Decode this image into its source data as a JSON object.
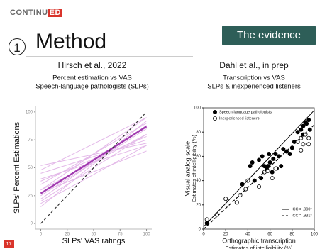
{
  "logo": {
    "text": "CONTINU",
    "highlight": "ED"
  },
  "section_number": "1",
  "title": "Method",
  "badge": "The evidence",
  "page_number": "17",
  "chart_data": [
    {
      "type": "line",
      "title": "Hirsch et al., 2022",
      "subtitle": [
        "Percent estimation vs VAS",
        "Speech-language pathologists (SLPs)"
      ],
      "xlabel": "SLPs' VAS ratings",
      "ylabel": [
        "SLPs' Percent Estimations"
      ],
      "x": [
        0,
        100
      ],
      "xlim": [
        -5,
        105
      ],
      "ylim": [
        -5,
        105
      ],
      "xticks": [
        0,
        25,
        50,
        75,
        100
      ],
      "yticks": [
        0,
        25,
        50,
        75,
        100
      ],
      "frame": false,
      "series": [
        {
          "color": "#e3b8e8",
          "values": [
            45,
            75
          ]
        },
        {
          "color": "#e3b8e8",
          "values": [
            40,
            70
          ]
        },
        {
          "color": "#e3b8e8",
          "values": [
            35,
            90
          ]
        },
        {
          "color": "#e3b8e8",
          "values": [
            30,
            95
          ]
        },
        {
          "color": "#e3b8e8",
          "values": [
            25,
            85
          ]
        },
        {
          "color": "#e3b8e8",
          "values": [
            20,
            80
          ]
        },
        {
          "color": "#e3b8e8",
          "values": [
            52,
            72
          ]
        },
        {
          "color": "#e3b8e8",
          "values": [
            15,
            92
          ]
        },
        {
          "color": "#e3b8e8",
          "values": [
            30,
            80
          ]
        },
        {
          "color": "#e3b8e8",
          "values": [
            22,
            88
          ]
        },
        {
          "color": "#e3b8e8",
          "values": [
            48,
            95
          ]
        },
        {
          "color": "#e3b8e8",
          "values": [
            38,
            78
          ]
        },
        {
          "color": "#e3b8e8",
          "values": [
            18,
            70
          ]
        },
        {
          "color": "#e3b8e8",
          "values": [
            28,
            65
          ]
        },
        {
          "color": "#a13ab0",
          "highlight": true,
          "values": [
            27,
            87
          ]
        },
        {
          "color": "#333333",
          "dash": true,
          "values": [
            0,
            100
          ]
        }
      ]
    },
    {
      "type": "scatter",
      "title": "Dahl et al., in prep",
      "subtitle": [
        "Transcription vs VAS",
        "SLPs & inexperienced listeners"
      ],
      "xlabel": [
        "Orthographic transcription",
        "Estimates of intelligibility (%)"
      ],
      "ylabel": [
        "Visual analog scale",
        "Estimates of intelligibility (%)"
      ],
      "xlim": [
        0,
        100
      ],
      "ylim": [
        0,
        100
      ],
      "xticks": [
        0,
        20,
        40,
        60,
        80,
        100
      ],
      "yticks": [
        0,
        20,
        40,
        60,
        80,
        100
      ],
      "frame": true,
      "series": [
        {
          "name": "Speech-language pathologists",
          "color": "#000000",
          "marker": "filled",
          "x": [
            3,
            35,
            42,
            44,
            46,
            50,
            52,
            53,
            55,
            57,
            58,
            59,
            60,
            62,
            63,
            65,
            66,
            68,
            70,
            72,
            75,
            78,
            80,
            82,
            85,
            88,
            90,
            92,
            95,
            96,
            90,
            93
          ],
          "values": [
            5,
            37,
            52,
            55,
            40,
            57,
            42,
            60,
            52,
            50,
            52,
            62,
            55,
            47,
            58,
            62,
            50,
            60,
            52,
            66,
            64,
            62,
            67,
            72,
            80,
            82,
            85,
            88,
            90,
            82,
            78,
            87
          ]
        },
        {
          "name": "Inexperienced listeners",
          "color": "#000000",
          "marker": "open",
          "x": [
            3,
            12,
            20,
            30,
            33,
            38,
            40,
            50,
            55,
            58,
            62,
            65,
            85,
            88,
            90,
            92,
            95,
            95,
            88
          ],
          "values": [
            8,
            12,
            25,
            22,
            28,
            33,
            40,
            35,
            47,
            48,
            42,
            50,
            72,
            75,
            70,
            78,
            75,
            70,
            65
          ]
        },
        {
          "name": "ICC = .990*",
          "color": "#000000",
          "x": [
            0,
            100
          ],
          "values": [
            2,
            98
          ]
        },
        {
          "name": "ICC = .931*",
          "color": "#000000",
          "dash": true,
          "x": [
            0,
            100
          ],
          "values": [
            0,
            86
          ]
        }
      ]
    }
  ]
}
